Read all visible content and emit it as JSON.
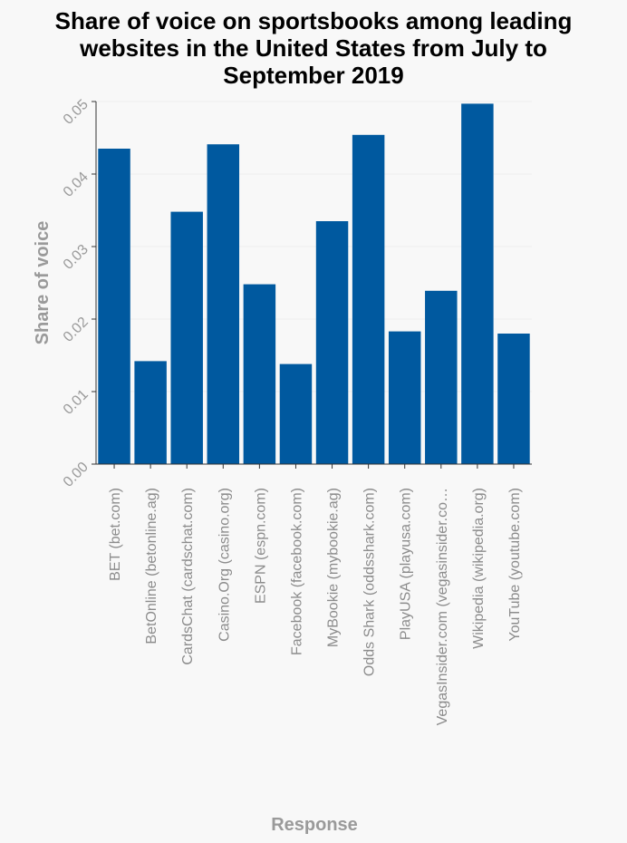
{
  "chart_data": {
    "type": "bar",
    "title_lines": [
      "Share of voice on sportsbooks among leading",
      "websites in the United States from July to",
      "September 2019"
    ],
    "xlabel": "Response",
    "ylabel": "Share of voice",
    "ylim": [
      0,
      0.05
    ],
    "yticks": [
      0,
      0.01,
      0.02,
      0.03,
      0.04,
      0.05
    ],
    "ytick_labels": [
      "0.00",
      "0.01",
      "0.02",
      "0.03",
      "0.04",
      "0.05"
    ],
    "grid": true,
    "categories": [
      "BET (bet.com)",
      "BetOnline (betonline.ag)",
      "CardsChat (cardschat.com)",
      "Casino.Org (casino.org)",
      "ESPN (espn.com)",
      "Facebook (facebook.com)",
      "MyBookie (mybookie.ag)",
      "Odds Shark (oddsshark.com)",
      "PlayUSA (playusa.com)",
      "VegasInsider.com (vegasinsider.co…",
      "Wikipedia (wikipedia.org)",
      "YouTube (youtube.com)"
    ],
    "values": [
      0.0435,
      0.0142,
      0.0348,
      0.0441,
      0.0248,
      0.0138,
      0.0335,
      0.0454,
      0.0183,
      0.0239,
      0.0497,
      0.018
    ],
    "colors": {
      "bar": "#00599f",
      "axis": "#333333",
      "grid": "#eeeeee",
      "text_muted": "#9a9a9a"
    }
  }
}
